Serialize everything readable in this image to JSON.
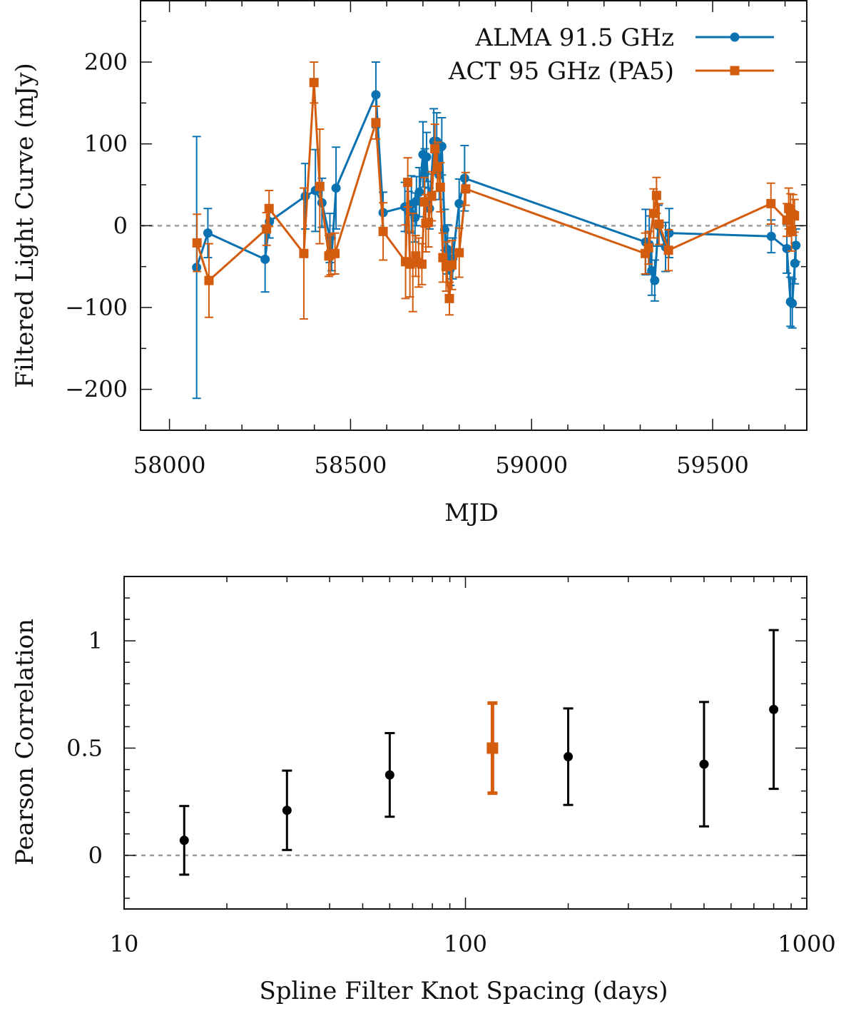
{
  "chart_data": [
    {
      "type": "line",
      "xlabel": "MJD",
      "ylabel": "Filtered Light Curve (mJy)",
      "xlim": [
        57920,
        59760
      ],
      "ylim": [
        -250,
        275
      ],
      "xticks": [
        58000,
        58500,
        59000,
        59500
      ],
      "xtick_labels": [
        "58000",
        "58500",
        "59000",
        "59500"
      ],
      "yticks": [
        -200,
        -100,
        0,
        100,
        200
      ],
      "ytick_labels": [
        "−200",
        "−100",
        "0",
        "100",
        "200"
      ],
      "zero_line": true,
      "legend_position": "top-right",
      "series": [
        {
          "name": "ALMA 91.5 GHz",
          "color": "#0a72b0",
          "marker": "circle",
          "x": [
            58075,
            58106,
            58264,
            58276,
            58375,
            58403,
            58421,
            58443,
            58448,
            58460,
            58570,
            58590,
            58650,
            58660,
            58668,
            58678,
            58682,
            58690,
            58700,
            58705,
            58710,
            58718,
            58730,
            58738,
            58745,
            58752,
            58760,
            58768,
            58775,
            58782,
            58800,
            58815,
            59315,
            59325,
            59332,
            59340,
            59350,
            59370,
            59380,
            59662,
            59705,
            59715,
            59720,
            59727,
            59730
          ],
          "y": [
            -51,
            -9,
            -41,
            5,
            36,
            43,
            28,
            -15,
            -35,
            46,
            160,
            16,
            23,
            17,
            26,
            10,
            30,
            41,
            87,
            64,
            84,
            21,
            103,
            103,
            62,
            97,
            -5,
            -29,
            -53,
            -40,
            27,
            58,
            -20,
            -23,
            -55,
            -67,
            0,
            -26,
            -9,
            -13,
            -28,
            -93,
            -95,
            -46,
            -24
          ],
          "err": [
            160,
            30,
            40,
            20,
            40,
            50,
            30,
            30,
            20,
            50,
            40,
            25,
            30,
            25,
            35,
            30,
            30,
            30,
            40,
            30,
            30,
            25,
            40,
            35,
            30,
            35,
            25,
            30,
            20,
            25,
            30,
            40,
            40,
            35,
            30,
            25,
            25,
            30,
            30,
            20,
            30,
            30,
            30,
            25,
            20
          ]
        },
        {
          "name": "ACT 95 GHz (PA5)",
          "color": "#d35c0e",
          "marker": "square",
          "x": [
            58076,
            58109,
            58268,
            58275,
            58371,
            58399,
            58415,
            58440,
            58445,
            58457,
            58570,
            58590,
            58652,
            58658,
            58664,
            58672,
            58680,
            58688,
            58697,
            58704,
            58708,
            58715,
            58724,
            58733,
            58740,
            58748,
            58755,
            58764,
            58773,
            58780,
            58800,
            58818,
            59314,
            59323,
            59337,
            59345,
            59352,
            59378,
            59661,
            59705,
            59710,
            59715,
            59718,
            59722,
            59726
          ],
          "y": [
            -21,
            -67,
            -4,
            21,
            -34,
            175,
            48,
            -37,
            -35,
            -34,
            126,
            -7,
            -44,
            53,
            -47,
            -45,
            -37,
            -45,
            -47,
            29,
            3,
            4,
            36,
            94,
            72,
            47,
            -39,
            -50,
            -89,
            -48,
            -33,
            45,
            -34,
            -27,
            15,
            37,
            2,
            -30,
            27,
            7,
            21,
            19,
            -6,
            13,
            12
          ],
          "err": [
            35,
            45,
            20,
            22,
            80,
            25,
            70,
            25,
            25,
            25,
            20,
            35,
            45,
            30,
            40,
            60,
            25,
            30,
            25,
            30,
            35,
            30,
            30,
            30,
            30,
            30,
            30,
            30,
            20,
            30,
            30,
            20,
            25,
            20,
            30,
            22,
            25,
            25,
            25,
            20,
            25,
            20,
            25,
            25,
            20
          ]
        }
      ]
    },
    {
      "type": "scatter",
      "xlabel": "Spline Filter Knot Spacing (days)",
      "ylabel": "Pearson Correlation",
      "xscale": "log",
      "xlim": [
        10,
        1000
      ],
      "ylim": [
        -0.25,
        1.3
      ],
      "xticks": [
        10,
        100,
        1000
      ],
      "xtick_labels": [
        "10",
        "100",
        "1000"
      ],
      "yticks": [
        0,
        0.5,
        1
      ],
      "ytick_labels": [
        "0",
        "0.5",
        "1"
      ],
      "zero_line": true,
      "series": [
        {
          "color": "#000000",
          "marker": "circle",
          "x": [
            15,
            30,
            60,
            200,
            500,
            800
          ],
          "y": [
            0.07,
            0.21,
            0.375,
            0.46,
            0.425,
            0.68
          ],
          "yerr_low": [
            0.16,
            0.185,
            0.195,
            0.225,
            0.29,
            0.37
          ],
          "yerr_high": [
            0.16,
            0.185,
            0.195,
            0.225,
            0.29,
            0.37
          ]
        },
        {
          "color": "#d35c0e",
          "marker": "square",
          "x": [
            120
          ],
          "y": [
            0.5
          ],
          "yerr_low": [
            0.21
          ],
          "yerr_high": [
            0.21
          ]
        }
      ]
    }
  ]
}
